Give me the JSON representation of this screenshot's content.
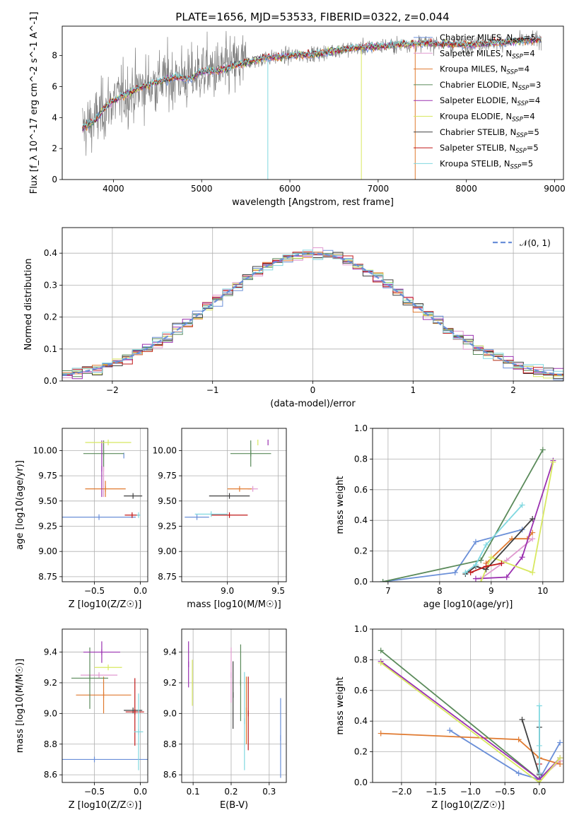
{
  "figure": {
    "title": "PLATE=1656, MJD=53533, FIBERID=0322, z=0.044"
  },
  "colors": {
    "data": "#808080",
    "Chabrier MILES": "#6a8fd8",
    "Salpeter MILES": "#e09ad0",
    "Kroupa MILES": "#e07a30",
    "Chabrier ELODIE": "#5a8a5a",
    "Salpeter ELODIE": "#9a30b0",
    "Kroupa ELODIE": "#d8e860",
    "Chabrier STELIB": "#404040",
    "Salpeter STELIB": "#c01818",
    "Kroupa STELIB": "#80d8e0"
  },
  "chart_data": [
    {
      "id": "spectrum",
      "type": "line",
      "title": "PLATE=1656, MJD=53533, FIBERID=0322, z=0.044",
      "xlabel": "wavelength [Angstrom, rest frame]",
      "ylabel": "Flux [f_λ 10^-17 erg cm^-2 s^-1 A^-1]",
      "xlim": [
        3420,
        9100
      ],
      "ylim": [
        0,
        9.9
      ],
      "xticks": [
        4000,
        5000,
        6000,
        7000,
        8000,
        9000
      ],
      "yticks": [
        0,
        2,
        4,
        6,
        8
      ],
      "grid": false,
      "legend_position": "top-right",
      "legend": [
        {
          "label": "Chabrier MILES, N",
          "sub": "SSP",
          "suffix": "=5",
          "key": "Chabrier MILES"
        },
        {
          "label": "Salpeter MILES, N",
          "sub": "SSP",
          "suffix": "=4",
          "key": "Salpeter MILES"
        },
        {
          "label": "Kroupa MILES, N",
          "sub": "SSP",
          "suffix": "=4",
          "key": "Kroupa MILES"
        },
        {
          "label": "Chabrier ELODIE, N",
          "sub": "SSP",
          "suffix": "=3",
          "key": "Chabrier ELODIE"
        },
        {
          "label": "Salpeter ELODIE, N",
          "sub": "SSP",
          "suffix": "=4",
          "key": "Salpeter ELODIE"
        },
        {
          "label": "Kroupa ELODIE, N",
          "sub": "SSP",
          "suffix": "=4",
          "key": "Kroupa ELODIE"
        },
        {
          "label": "Chabrier STELIB, N",
          "sub": "SSP",
          "suffix": "=5",
          "key": "Chabrier STELIB"
        },
        {
          "label": "Salpeter STELIB, N",
          "sub": "SSP",
          "suffix": "=5",
          "key": "Salpeter STELIB"
        },
        {
          "label": "Kroupa STELIB, N",
          "sub": "SSP",
          "suffix": "=5",
          "key": "Kroupa STELIB"
        }
      ],
      "continuum": [
        [
          3650,
          3.3
        ],
        [
          3800,
          3.9
        ],
        [
          3950,
          4.9
        ],
        [
          4100,
          5.4
        ],
        [
          4300,
          5.9
        ],
        [
          4500,
          6.3
        ],
        [
          4700,
          6.6
        ],
        [
          4861,
          6.5
        ],
        [
          5000,
          7.0
        ],
        [
          5175,
          7.0
        ],
        [
          5400,
          7.4
        ],
        [
          5700,
          7.8
        ],
        [
          6000,
          8.0
        ],
        [
          6300,
          8.1
        ],
        [
          6563,
          8.4
        ],
        [
          7000,
          8.6
        ],
        [
          7500,
          8.8
        ],
        [
          8000,
          8.7
        ],
        [
          8500,
          8.9
        ],
        [
          8850,
          9.0
        ]
      ]
    },
    {
      "id": "residuals",
      "type": "line",
      "xlabel": "(data-model)/error",
      "ylabel": "Normed distribution",
      "xlim": [
        -2.5,
        2.5
      ],
      "ylim": [
        0,
        0.48
      ],
      "xticks": [
        -2,
        -1,
        0,
        1,
        2
      ],
      "yticks": [
        0.0,
        0.1,
        0.2,
        0.3,
        0.4
      ],
      "grid": true,
      "legend_position": "top-right",
      "legend": [
        {
          "label": "(0, 1)",
          "prefix": "𝒩",
          "key": "Chabrier MILES"
        }
      ],
      "reference_curve": {
        "name": "gaussian",
        "mean": 0,
        "sigma": 1
      }
    },
    {
      "id": "age_vs_Z",
      "type": "scatter",
      "xlabel": "Z [log10(Z/Z☉)]",
      "ylabel": "age [log10(age/yr)]",
      "xlim": [
        -0.85,
        0.08
      ],
      "ylim": [
        8.7,
        10.22
      ],
      "xticks": [
        -0.5,
        0.0
      ],
      "yticks": [
        8.75,
        9.0,
        9.25,
        9.5,
        9.75,
        10.0
      ],
      "grid": true,
      "points": [
        {
          "key": "Chabrier MILES",
          "x": -0.45,
          "y": 9.34,
          "xerr": 0.4,
          "yerr": 0.0
        },
        {
          "key": "Chabrier MILES",
          "x": -0.18,
          "y": 9.95,
          "xerr": 0.0,
          "yerr": 0.0
        },
        {
          "key": "Salpeter MILES",
          "x": -0.4,
          "y": 9.82,
          "xerr": 0.0,
          "yerr": 0.28
        },
        {
          "key": "Kroupa MILES",
          "x": -0.38,
          "y": 9.62,
          "xerr": 0.22,
          "yerr": 0.08
        },
        {
          "key": "Chabrier ELODIE",
          "x": -0.4,
          "y": 9.97,
          "xerr": 0.22,
          "yerr": 0.13
        },
        {
          "key": "Salpeter ELODIE",
          "x": -0.42,
          "y": 9.82,
          "xerr": 0.0,
          "yerr": 0.28
        },
        {
          "key": "Kroupa ELODIE",
          "x": -0.35,
          "y": 10.08,
          "xerr": 0.25,
          "yerr": 0.0
        },
        {
          "key": "Chabrier STELIB",
          "x": -0.08,
          "y": 9.55,
          "xerr": 0.1,
          "yerr": 0.0
        },
        {
          "key": "Salpeter STELIB",
          "x": -0.09,
          "y": 9.36,
          "xerr": 0.08,
          "yerr": 0.0
        },
        {
          "key": "Kroupa STELIB",
          "x": -0.02,
          "y": 9.36,
          "xerr": 0.02,
          "yerr": 0.0
        }
      ]
    },
    {
      "id": "age_vs_mass",
      "type": "scatter",
      "xlabel": "mass [log10(M/M☉)]",
      "ylabel": "",
      "xlim": [
        8.55,
        9.58
      ],
      "ylim": [
        8.7,
        10.22
      ],
      "xticks": [
        9.0,
        9.5
      ],
      "yticks": [
        8.75,
        9.0,
        9.25,
        9.5,
        9.75,
        10.0
      ],
      "grid": true,
      "points": [
        {
          "key": "Chabrier MILES",
          "x": 8.7,
          "y": 9.34,
          "xerr": 0.12,
          "yerr": 0.0
        },
        {
          "key": "Salpeter MILES",
          "x": 9.25,
          "y": 9.62,
          "xerr": 0.05,
          "yerr": 0.0
        },
        {
          "key": "Kroupa MILES",
          "x": 9.12,
          "y": 9.62,
          "xerr": 0.12,
          "yerr": 0.0
        },
        {
          "key": "Chabrier ELODIE",
          "x": 9.23,
          "y": 9.97,
          "xerr": 0.2,
          "yerr": 0.13
        },
        {
          "key": "Salpeter ELODIE",
          "x": 9.4,
          "y": 10.08,
          "xerr": 0.0,
          "yerr": 0.0
        },
        {
          "key": "Kroupa ELODIE",
          "x": 9.3,
          "y": 10.08,
          "xerr": 0.0,
          "yerr": 0.0
        },
        {
          "key": "Chabrier STELIB",
          "x": 9.02,
          "y": 9.55,
          "xerr": 0.2,
          "yerr": 0.0
        },
        {
          "key": "Salpeter STELIB",
          "x": 9.02,
          "y": 9.36,
          "xerr": 0.18,
          "yerr": 0.0
        },
        {
          "key": "Kroupa STELIB",
          "x": 8.84,
          "y": 9.37,
          "xerr": 0.16,
          "yerr": 0.0
        }
      ]
    },
    {
      "id": "massweight_vs_age",
      "type": "line",
      "xlabel": "age [log10(age/yr)]",
      "ylabel": "mass weight",
      "xlim": [
        6.7,
        10.4
      ],
      "ylim": [
        0.0,
        1.0
      ],
      "xticks": [
        7,
        8,
        9,
        10
      ],
      "yticks": [
        0.0,
        0.2,
        0.4,
        0.6,
        0.8,
        1.0
      ],
      "grid": true,
      "series": [
        {
          "key": "Chabrier MILES",
          "x": [
            6.9,
            8.3,
            8.7,
            9.6
          ],
          "y": [
            0.0,
            0.06,
            0.26,
            0.34
          ]
        },
        {
          "key": "Salpeter MILES",
          "x": [
            8.8,
            9.3,
            9.8
          ],
          "y": [
            0.02,
            0.14,
            0.28
          ]
        },
        {
          "key": "Kroupa MILES",
          "x": [
            8.9,
            9.4,
            9.7,
            9.8
          ],
          "y": [
            0.12,
            0.28,
            0.28,
            0.32
          ]
        },
        {
          "key": "Chabrier ELODIE",
          "x": [
            6.9,
            8.8,
            10.0
          ],
          "y": [
            0.0,
            0.14,
            0.86
          ]
        },
        {
          "key": "Salpeter ELODIE",
          "x": [
            8.7,
            9.3,
            9.6,
            10.2
          ],
          "y": [
            0.02,
            0.03,
            0.16,
            0.79
          ]
        },
        {
          "key": "Kroupa ELODIE",
          "x": [
            8.8,
            9.0,
            9.8,
            10.2
          ],
          "y": [
            0.0,
            0.16,
            0.06,
            0.78
          ]
        },
        {
          "key": "Chabrier STELIB",
          "x": [
            8.5,
            8.7,
            8.9,
            9.8
          ],
          "y": [
            0.05,
            0.1,
            0.08,
            0.41
          ]
        },
        {
          "key": "Salpeter STELIB",
          "x": [
            8.6,
            8.9,
            9.2
          ],
          "y": [
            0.06,
            0.1,
            0.12
          ]
        },
        {
          "key": "Kroupa STELIB",
          "x": [
            8.5,
            8.7,
            8.9,
            9.6
          ],
          "y": [
            0.06,
            0.11,
            0.24,
            0.5
          ]
        }
      ]
    },
    {
      "id": "mass_vs_Z",
      "type": "scatter",
      "xlabel": "Z [log10(Z/Z☉)]",
      "ylabel": "mass [log10(M/M☉)]",
      "xlim": [
        -0.85,
        0.08
      ],
      "ylim": [
        8.55,
        9.55
      ],
      "xticks": [
        -0.5,
        0.0
      ],
      "yticks": [
        8.6,
        8.8,
        9.0,
        9.2,
        9.4
      ],
      "grid": true,
      "points": [
        {
          "key": "Chabrier MILES",
          "x": -0.5,
          "y": 8.7,
          "xerr": 0.6,
          "yerr": 0.0
        },
        {
          "key": "Salpeter MILES",
          "x": -0.45,
          "y": 9.25,
          "xerr": 0.2,
          "yerr": 0.0
        },
        {
          "key": "Kroupa MILES",
          "x": -0.4,
          "y": 9.12,
          "xerr": 0.3,
          "yerr": 0.12
        },
        {
          "key": "Chabrier ELODIE",
          "x": -0.55,
          "y": 9.23,
          "xerr": 0.2,
          "yerr": 0.2
        },
        {
          "key": "Salpeter ELODIE",
          "x": -0.42,
          "y": 9.4,
          "xerr": 0.2,
          "yerr": 0.07
        },
        {
          "key": "Kroupa ELODIE",
          "x": -0.35,
          "y": 9.3,
          "xerr": 0.15,
          "yerr": 0.0
        },
        {
          "key": "Chabrier STELIB",
          "x": -0.08,
          "y": 9.02,
          "xerr": 0.1,
          "yerr": 0.0
        },
        {
          "key": "Salpeter STELIB",
          "x": -0.06,
          "y": 9.01,
          "xerr": 0.1,
          "yerr": 0.22
        },
        {
          "key": "Kroupa STELIB",
          "x": -0.02,
          "y": 8.88,
          "xerr": 0.05,
          "yerr": 0.25
        }
      ]
    },
    {
      "id": "mass_vs_ebv",
      "type": "scatter",
      "xlabel": "E(B-V)",
      "ylabel": "",
      "xlim": [
        0.07,
        0.345
      ],
      "ylim": [
        8.55,
        9.55
      ],
      "xticks": [
        0.1,
        0.2,
        0.3
      ],
      "yticks": [
        8.6,
        8.8,
        9.0,
        9.2,
        9.4
      ],
      "grid": true,
      "points": [
        {
          "key": "Chabrier MILES",
          "x": 0.33,
          "y": 8.84,
          "xerr": 0.0,
          "yerr": 0.26
        },
        {
          "key": "Salpeter MILES",
          "x": 0.2,
          "y": 9.25,
          "xerr": 0.0,
          "yerr": 0.18
        },
        {
          "key": "Kroupa MILES",
          "x": 0.24,
          "y": 9.02,
          "xerr": 0.0,
          "yerr": 0.22
        },
        {
          "key": "Chabrier ELODIE",
          "x": 0.225,
          "y": 9.2,
          "xerr": 0.0,
          "yerr": 0.25
        },
        {
          "key": "Salpeter ELODIE",
          "x": 0.088,
          "y": 9.32,
          "xerr": 0.0,
          "yerr": 0.15
        },
        {
          "key": "Kroupa ELODIE",
          "x": 0.098,
          "y": 9.2,
          "xerr": 0.0,
          "yerr": 0.15
        },
        {
          "key": "Chabrier STELIB",
          "x": 0.205,
          "y": 9.12,
          "xerr": 0.0,
          "yerr": 0.22
        },
        {
          "key": "Salpeter STELIB",
          "x": 0.245,
          "y": 9.0,
          "xerr": 0.0,
          "yerr": 0.24
        },
        {
          "key": "Kroupa STELIB",
          "x": 0.235,
          "y": 8.95,
          "xerr": 0.0,
          "yerr": 0.32
        }
      ]
    },
    {
      "id": "massweight_vs_Z",
      "type": "line",
      "xlabel": "Z [log10(Z/Z☉)]",
      "ylabel": "mass weight",
      "xlim": [
        -2.42,
        0.35
      ],
      "ylim": [
        0.0,
        1.0
      ],
      "xticks": [
        -2.0,
        -1.5,
        -1.0,
        -0.5,
        0.0
      ],
      "yticks": [
        0.0,
        0.2,
        0.4,
        0.6,
        0.8,
        1.0
      ],
      "grid": true,
      "series": [
        {
          "key": "Chabrier MILES",
          "x": [
            -1.3,
            -0.3,
            0.0,
            0.3
          ],
          "y": [
            0.34,
            0.06,
            0.02,
            0.26
          ]
        },
        {
          "key": "Salpeter MILES",
          "x": [
            0.0,
            0.3
          ],
          "y": [
            0.02,
            0.14
          ]
        },
        {
          "key": "Kroupa MILES",
          "x": [
            -2.3,
            -0.3,
            0.0,
            0.3
          ],
          "y": [
            0.32,
            0.28,
            0.16,
            0.12
          ]
        },
        {
          "key": "Chabrier ELODIE",
          "x": [
            -2.3,
            0.0
          ],
          "y": [
            0.86,
            0.02
          ]
        },
        {
          "key": "Salpeter ELODIE",
          "x": [
            -2.3,
            0.0,
            0.3
          ],
          "y": [
            0.79,
            0.02,
            0.16
          ]
        },
        {
          "key": "Kroupa ELODIE",
          "x": [
            -2.3,
            0.0,
            0.3
          ],
          "y": [
            0.78,
            0.0,
            0.16
          ]
        },
        {
          "key": "Chabrier STELIB",
          "x": [
            -0.25,
            0.0,
            0.0
          ],
          "y": [
            0.41,
            0.05,
            0.36
          ]
        },
        {
          "key": "Salpeter STELIB",
          "x": [
            0.0,
            0.0
          ],
          "y": [
            0.06,
            0.12
          ]
        },
        {
          "key": "Kroupa STELIB",
          "x": [
            0.0,
            0.0,
            0.0
          ],
          "y": [
            0.06,
            0.24,
            0.5
          ]
        }
      ]
    }
  ]
}
